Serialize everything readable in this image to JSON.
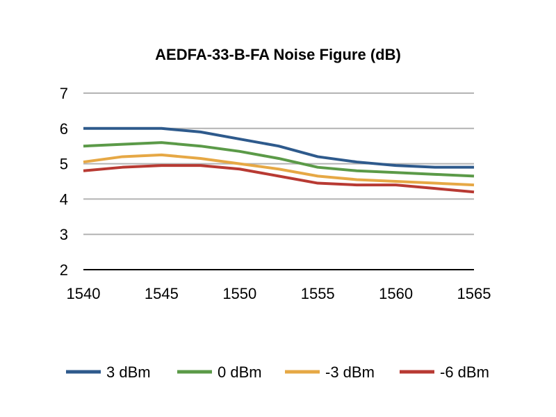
{
  "chart_data": {
    "type": "line",
    "title": "AEDFA-33-B-FA Noise Figure (dB)",
    "xlabel": "",
    "ylabel": "",
    "xlim": [
      1540,
      1565
    ],
    "ylim": [
      2,
      7
    ],
    "x_ticks": [
      1540,
      1545,
      1550,
      1555,
      1560,
      1565
    ],
    "y_ticks": [
      2,
      3,
      4,
      5,
      6,
      7
    ],
    "grid": true,
    "legend_position": "bottom",
    "x": [
      1540,
      1542.5,
      1545,
      1547.5,
      1550,
      1552.5,
      1555,
      1557.5,
      1560,
      1562.5,
      1565
    ],
    "series": [
      {
        "name": "3 dBm",
        "color": "#2e5a8c",
        "values": [
          6.0,
          6.0,
          6.0,
          5.9,
          5.7,
          5.5,
          5.2,
          5.05,
          4.95,
          4.9,
          4.9
        ]
      },
      {
        "name": "0 dBm",
        "color": "#5b9a48",
        "values": [
          5.5,
          5.55,
          5.6,
          5.5,
          5.35,
          5.15,
          4.9,
          4.8,
          4.75,
          4.7,
          4.65
        ]
      },
      {
        "name": "-3 dBm",
        "color": "#e6a845",
        "values": [
          5.05,
          5.2,
          5.25,
          5.15,
          5.0,
          4.85,
          4.65,
          4.55,
          4.5,
          4.45,
          4.4
        ]
      },
      {
        "name": "-6 dBm",
        "color": "#b83a33",
        "values": [
          4.8,
          4.9,
          4.95,
          4.95,
          4.85,
          4.65,
          4.45,
          4.4,
          4.4,
          4.3,
          4.2
        ]
      }
    ]
  }
}
